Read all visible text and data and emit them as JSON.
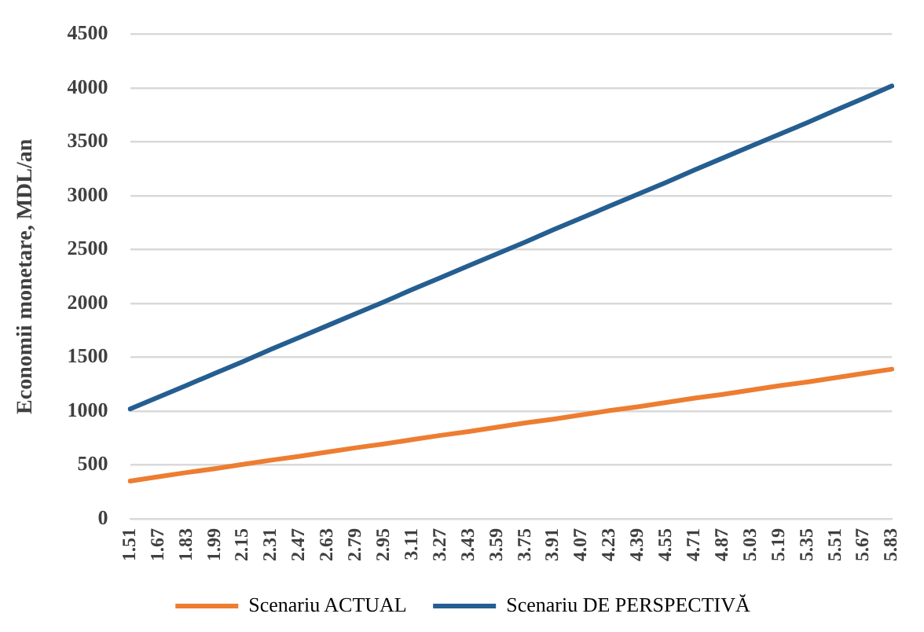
{
  "chart_data": {
    "type": "line",
    "ylabel": "Economii monetare, MDL/an",
    "categories": [
      "1.51",
      "1.67",
      "1.83",
      "1.99",
      "2.15",
      "2.31",
      "2.47",
      "2.63",
      "2.79",
      "2.95",
      "3.11",
      "3.27",
      "3.43",
      "3.59",
      "3.75",
      "3.91",
      "4.07",
      "4.23",
      "4.39",
      "4.55",
      "4.71",
      "4.87",
      "5.03",
      "5.19",
      "5.35",
      "5.51",
      "5.67",
      "5.83"
    ],
    "series": [
      {
        "name": "Scenariu ACTUAL",
        "color": "#ed7d31",
        "values": [
          350,
          390,
          430,
          465,
          505,
          545,
          580,
          620,
          660,
          695,
          735,
          775,
          810,
          850,
          890,
          925,
          965,
          1005,
          1040,
          1080,
          1120,
          1155,
          1195,
          1235,
          1270,
          1310,
          1350,
          1390
        ]
      },
      {
        "name": "Scenariu DE PERSPECTIVĂ",
        "color": "#255e91",
        "values": [
          1020,
          1130,
          1240,
          1350,
          1460,
          1575,
          1685,
          1795,
          1905,
          2015,
          2130,
          2240,
          2350,
          2460,
          2570,
          2685,
          2795,
          2905,
          3015,
          3125,
          3240,
          3350,
          3460,
          3570,
          3680,
          3795,
          3905,
          4020
        ]
      }
    ],
    "ylim": [
      0,
      4500
    ],
    "yticks": [
      0,
      500,
      1000,
      1500,
      2000,
      2500,
      3000,
      3500,
      4000,
      4500
    ],
    "grid": "y",
    "legend": "bottom",
    "marker": "none",
    "line_style": "solid"
  }
}
